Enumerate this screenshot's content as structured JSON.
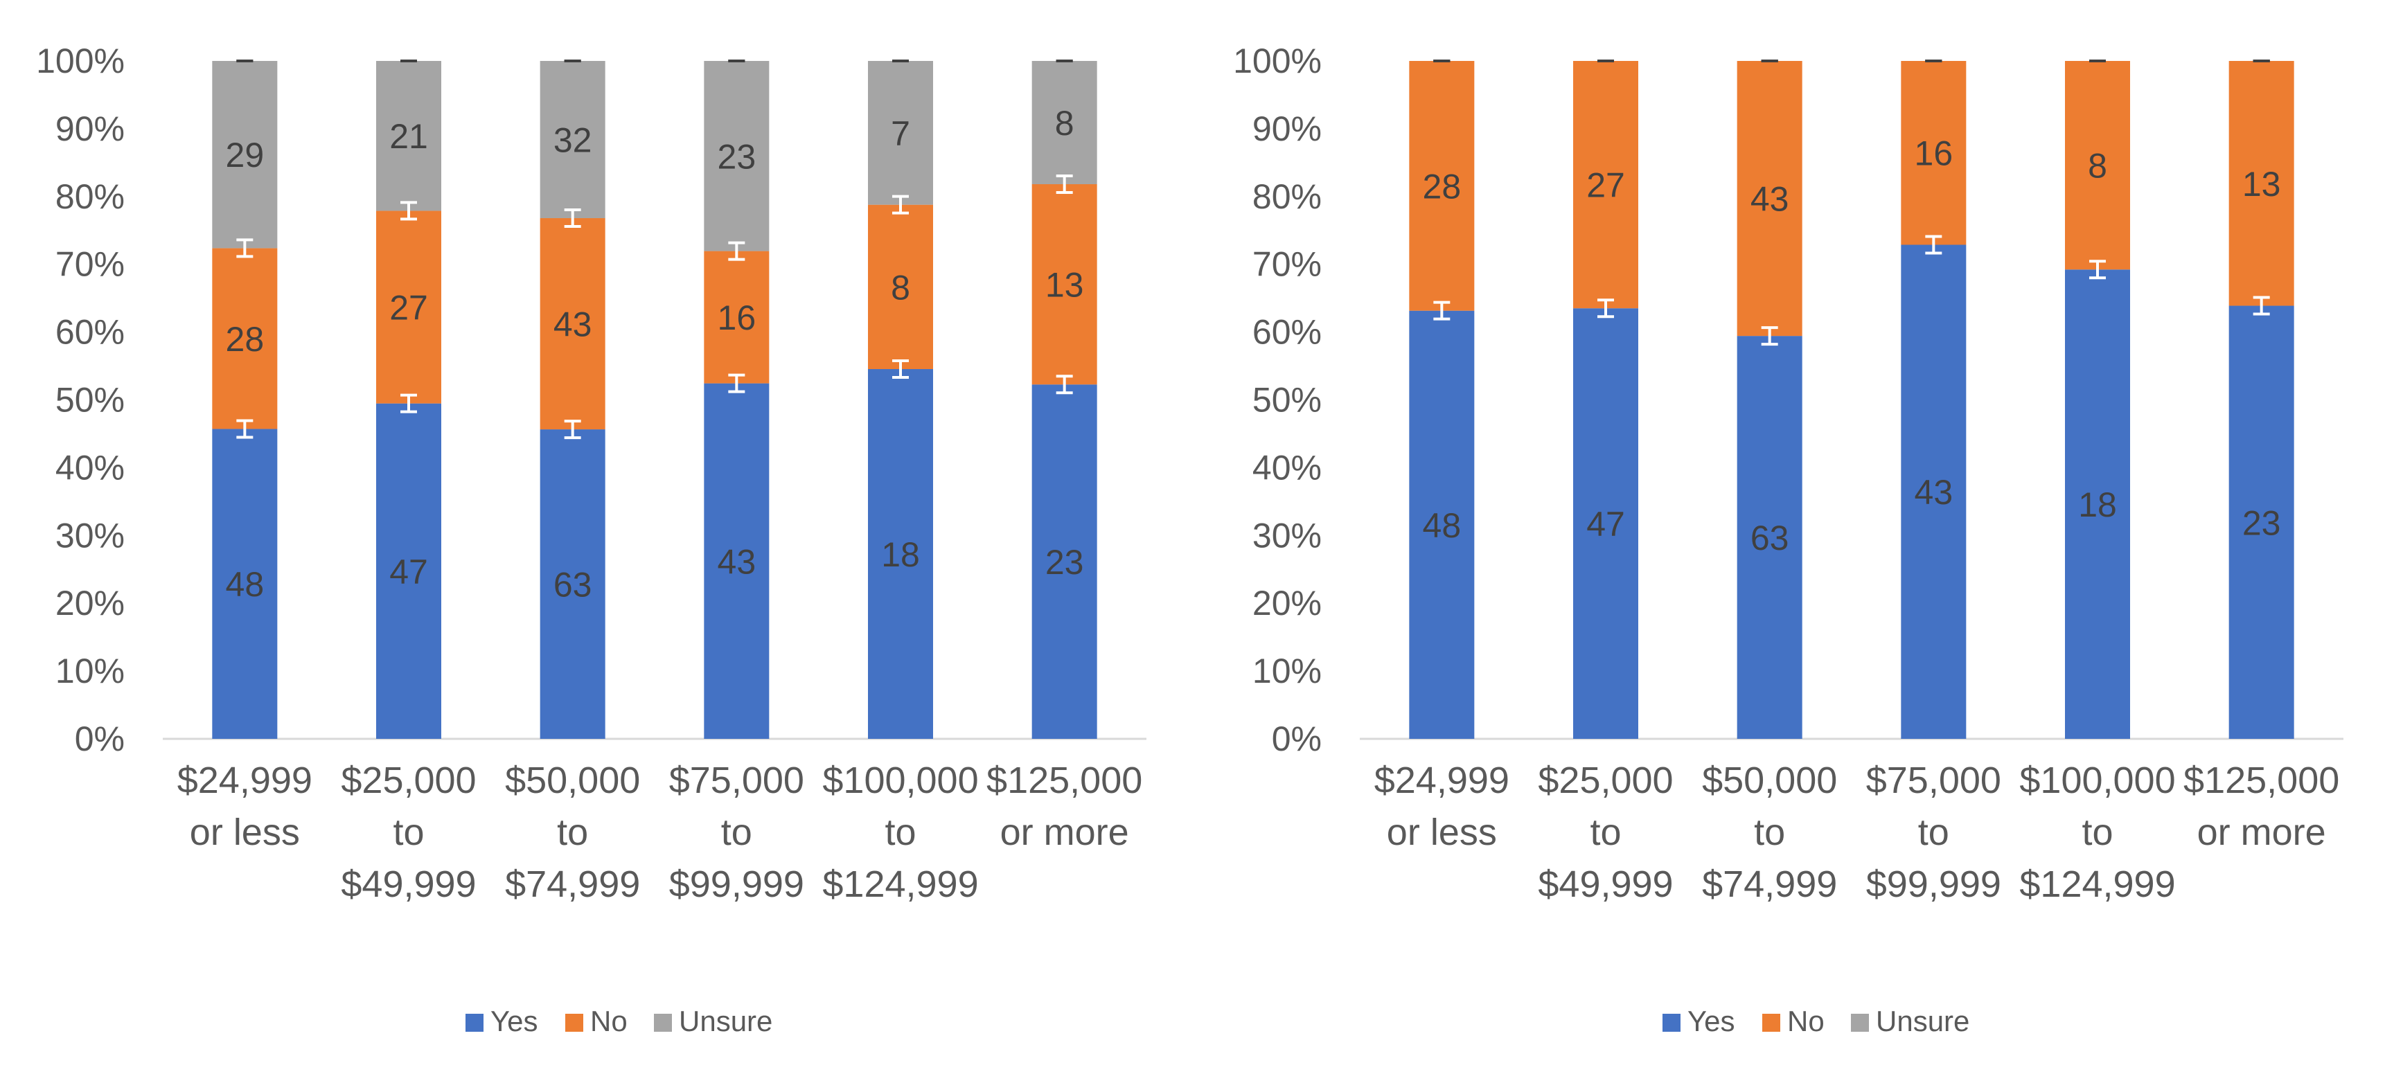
{
  "colors": {
    "yes": "#4472C4",
    "no": "#ED7D31",
    "unsure": "#A5A5A5",
    "axis_text": "#595959",
    "label_text": "#404040",
    "axis_line": "#D9D9D9",
    "error_bar": "#FFFFFF"
  },
  "chart_data": [
    {
      "type": "bar",
      "stacked": "percent",
      "title": "",
      "xlabel": "",
      "ylabel": "",
      "ylim": [
        0,
        100
      ],
      "yticks": [
        "0%",
        "10%",
        "20%",
        "30%",
        "40%",
        "50%",
        "60%",
        "70%",
        "80%",
        "90%",
        "100%"
      ],
      "categories": [
        [
          "$24,999",
          "or less"
        ],
        [
          "$25,000",
          "to",
          "$49,999"
        ],
        [
          "$50,000",
          "to",
          "$74,999"
        ],
        [
          "$75,000",
          "to",
          "$99,999"
        ],
        [
          "$100,000",
          "to",
          "$124,999"
        ],
        [
          "$125,000",
          "or more"
        ]
      ],
      "series": [
        {
          "name": "Yes",
          "key": "yes",
          "values": [
            48,
            47,
            63,
            43,
            18,
            23
          ]
        },
        {
          "name": "No",
          "key": "no",
          "values": [
            28,
            27,
            43,
            16,
            8,
            13
          ]
        },
        {
          "name": "Unsure",
          "key": "unsure",
          "values": [
            29,
            21,
            32,
            23,
            7,
            8
          ]
        }
      ],
      "error_bars": true,
      "legend": [
        "Yes",
        "No",
        "Unsure"
      ],
      "legend_position": "bottom"
    },
    {
      "type": "bar",
      "stacked": "percent",
      "title": "",
      "xlabel": "",
      "ylabel": "",
      "ylim": [
        0,
        100
      ],
      "yticks": [
        "0%",
        "10%",
        "20%",
        "30%",
        "40%",
        "50%",
        "60%",
        "70%",
        "80%",
        "90%",
        "100%"
      ],
      "categories": [
        [
          "$24,999",
          "or less"
        ],
        [
          "$25,000",
          "to",
          "$49,999"
        ],
        [
          "$50,000",
          "to",
          "$74,999"
        ],
        [
          "$75,000",
          "to",
          "$99,999"
        ],
        [
          "$100,000",
          "to",
          "$124,999"
        ],
        [
          "$125,000",
          "or more"
        ]
      ],
      "series": [
        {
          "name": "Yes",
          "key": "yes",
          "values": [
            48,
            47,
            63,
            43,
            18,
            23
          ]
        },
        {
          "name": "No",
          "key": "no",
          "values": [
            28,
            27,
            43,
            16,
            8,
            13
          ]
        },
        {
          "name": "Unsure",
          "key": "unsure",
          "values": [
            0,
            0,
            0,
            0,
            0,
            0
          ]
        }
      ],
      "error_bars": true,
      "legend": [
        "Yes",
        "No",
        "Unsure"
      ],
      "legend_position": "bottom"
    }
  ]
}
